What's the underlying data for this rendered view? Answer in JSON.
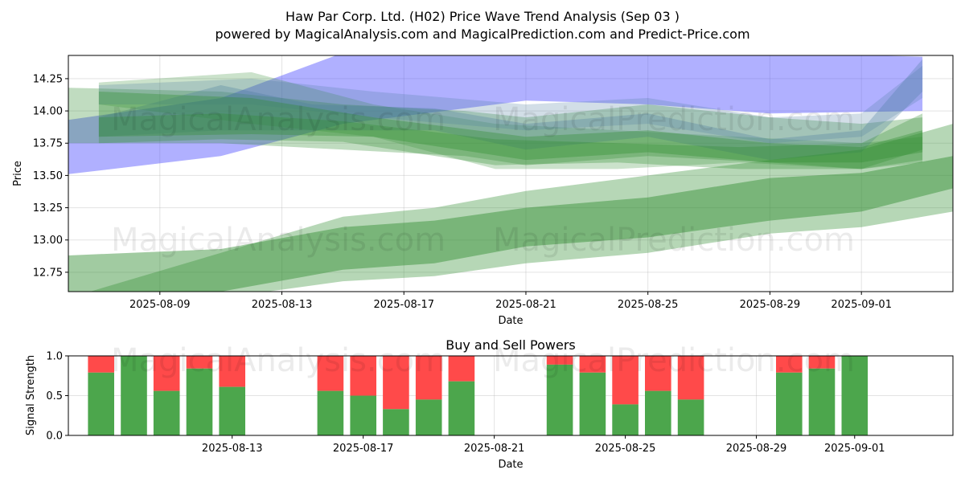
{
  "figure": {
    "title_line1": "Haw Par Corp. Ltd. (H02) Price Wave Trend Analysis (Sep 03 )",
    "title_line2": "powered by MagicalAnalysis.com and MagicalPrediction.com and Predict-Price.com",
    "watermarks": [
      "MagicalAnalysis.com",
      "MagicalPrediction.com"
    ]
  },
  "chart_data": [
    {
      "type": "area",
      "title": "",
      "xlabel": "Date",
      "ylabel": "Price",
      "x_tick_labels": [
        "2025-08-09",
        "2025-08-13",
        "2025-08-17",
        "2025-08-21",
        "2025-08-25",
        "2025-08-29",
        "2025-09-01"
      ],
      "x_tick_dates": [
        "2025-08-09",
        "2025-08-13",
        "2025-08-17",
        "2025-08-21",
        "2025-08-25",
        "2025-08-29",
        "2025-09-01"
      ],
      "xlim": [
        "2025-08-06",
        "2025-09-04"
      ],
      "ylim": [
        12.6,
        14.43
      ],
      "y_ticks": [
        12.75,
        13.0,
        13.25,
        13.5,
        13.75,
        14.0,
        14.25
      ],
      "y_tick_labels": [
        "12.75",
        "13.00",
        "13.25",
        "13.50",
        "13.75",
        "14.00",
        "14.25"
      ],
      "grid": true,
      "colors": {
        "green_band": "#2e8b2e",
        "blue_band": "#5050ff",
        "teal_band": "#4a7aa0"
      },
      "bands": [
        {
          "color": "blue",
          "opacity": 0.45,
          "x": [
            "2025-08-06",
            "2025-08-11",
            "2025-08-15",
            "2025-08-21",
            "2025-08-25",
            "2025-08-29",
            "2025-09-03"
          ],
          "upper": [
            13.93,
            14.1,
            14.45,
            14.45,
            14.45,
            14.45,
            14.42
          ],
          "lower": [
            13.51,
            13.65,
            13.9,
            14.08,
            14.05,
            13.98,
            14.0
          ]
        },
        {
          "color": "green",
          "opacity": 0.3,
          "x": [
            "2025-08-06",
            "2025-08-11",
            "2025-08-15",
            "2025-08-19",
            "2025-08-21",
            "2025-08-25",
            "2025-08-29",
            "2025-09-01",
            "2025-09-03"
          ],
          "upper": [
            14.18,
            14.15,
            14.05,
            14.0,
            13.95,
            14.05,
            13.95,
            13.9,
            13.95
          ],
          "lower": [
            13.75,
            13.75,
            13.7,
            13.65,
            13.58,
            13.65,
            13.6,
            13.55,
            13.62
          ]
        },
        {
          "color": "green",
          "opacity": 0.25,
          "x": [
            "2025-08-07",
            "2025-08-12",
            "2025-08-16",
            "2025-08-20",
            "2025-08-24",
            "2025-08-28",
            "2025-09-01",
            "2025-09-03"
          ],
          "upper": [
            14.22,
            14.3,
            14.05,
            13.9,
            13.85,
            13.8,
            13.75,
            13.8
          ],
          "lower": [
            14.05,
            13.9,
            13.8,
            13.55,
            13.55,
            13.6,
            13.55,
            13.6
          ]
        },
        {
          "color": "teal",
          "opacity": 0.3,
          "x": [
            "2025-08-07",
            "2025-08-11",
            "2025-08-14",
            "2025-08-18",
            "2025-08-21",
            "2025-08-25",
            "2025-08-29",
            "2025-09-01",
            "2025-09-03"
          ],
          "upper": [
            13.95,
            14.2,
            14.05,
            14.02,
            13.9,
            13.98,
            13.78,
            13.85,
            14.4
          ],
          "lower": [
            13.8,
            13.85,
            13.85,
            13.85,
            13.7,
            13.8,
            13.62,
            13.68,
            14.15
          ]
        },
        {
          "color": "teal",
          "opacity": 0.25,
          "x": [
            "2025-08-07",
            "2025-08-12",
            "2025-08-16",
            "2025-08-21",
            "2025-08-25",
            "2025-08-29",
            "2025-09-01",
            "2025-09-03"
          ],
          "upper": [
            14.2,
            14.25,
            14.15,
            14.05,
            14.1,
            13.95,
            13.98,
            14.35
          ],
          "lower": [
            14.05,
            14.05,
            13.95,
            13.85,
            13.9,
            13.75,
            13.8,
            14.1
          ]
        },
        {
          "color": "green",
          "opacity": 0.35,
          "x": [
            "2025-08-06",
            "2025-08-11",
            "2025-08-15",
            "2025-08-18",
            "2025-08-21",
            "2025-08-25",
            "2025-08-29",
            "2025-09-01",
            "2025-09-04"
          ],
          "upper": [
            12.55,
            12.9,
            13.18,
            13.25,
            13.38,
            13.5,
            13.62,
            13.7,
            13.9
          ],
          "lower": [
            12.3,
            12.55,
            12.68,
            12.72,
            12.82,
            12.9,
            13.05,
            13.1,
            13.22
          ]
        },
        {
          "color": "green",
          "opacity": 0.45,
          "x": [
            "2025-08-06",
            "2025-08-11",
            "2025-08-15",
            "2025-08-18",
            "2025-08-21",
            "2025-08-25",
            "2025-08-29",
            "2025-09-01",
            "2025-09-04"
          ],
          "upper": [
            12.88,
            12.93,
            13.1,
            13.15,
            13.25,
            13.33,
            13.48,
            13.52,
            13.65
          ],
          "lower": [
            12.5,
            12.6,
            12.77,
            12.82,
            12.95,
            13.02,
            13.15,
            13.22,
            13.4
          ]
        },
        {
          "color": "green",
          "opacity": 0.35,
          "x": [
            "2025-08-07",
            "2025-08-12",
            "2025-08-16",
            "2025-08-21",
            "2025-08-25",
            "2025-08-29",
            "2025-09-01",
            "2025-09-03"
          ],
          "upper": [
            14.15,
            14.1,
            13.95,
            13.8,
            13.85,
            13.75,
            13.72,
            13.85
          ],
          "lower": [
            13.8,
            13.82,
            13.8,
            13.62,
            13.68,
            13.6,
            13.6,
            13.68
          ]
        },
        {
          "color": "green",
          "opacity": 0.3,
          "x": [
            "2025-08-07",
            "2025-08-11",
            "2025-08-15",
            "2025-08-20",
            "2025-08-24",
            "2025-08-28",
            "2025-09-01",
            "2025-09-03"
          ],
          "upper": [
            13.95,
            13.98,
            13.92,
            13.78,
            13.75,
            13.72,
            13.75,
            13.98
          ],
          "lower": [
            13.75,
            13.78,
            13.76,
            13.58,
            13.6,
            13.55,
            13.55,
            13.7
          ]
        }
      ]
    },
    {
      "type": "bar",
      "title": "Buy and Sell Powers",
      "xlabel": "Date",
      "ylabel": "Signal Strength",
      "ylim": [
        0,
        1
      ],
      "y_ticks": [
        0.0,
        0.5,
        1.0
      ],
      "y_tick_labels": [
        "0.0",
        "0.5",
        "1.0"
      ],
      "x_tick_labels": [
        "2025-08-13",
        "2025-08-17",
        "2025-08-21",
        "2025-08-25",
        "2025-08-29",
        "2025-09-01"
      ],
      "x_tick_dates": [
        "2025-08-13",
        "2025-08-17",
        "2025-08-21",
        "2025-08-25",
        "2025-08-29",
        "2025-09-01"
      ],
      "xlim": [
        "2025-08-08",
        "2025-09-04"
      ],
      "grid": true,
      "colors": {
        "buy": "#4ca64c",
        "sell": "#ff4a4a"
      },
      "series": [
        {
          "name": "Buy",
          "color": "#4ca64c"
        },
        {
          "name": "Sell",
          "color": "#ff4a4a"
        }
      ],
      "categories": [
        "2025-08-09",
        "2025-08-10",
        "2025-08-11",
        "2025-08-12",
        "2025-08-13",
        "2025-08-16",
        "2025-08-17",
        "2025-08-18",
        "2025-08-19",
        "2025-08-20",
        "2025-08-23",
        "2025-08-24",
        "2025-08-25",
        "2025-08-26",
        "2025-08-27",
        "2025-08-30",
        "2025-08-31",
        "2025-09-01"
      ],
      "buy_values": [
        0.79,
        1.0,
        0.56,
        0.84,
        0.61,
        0.56,
        0.5,
        0.33,
        0.45,
        0.68,
        0.89,
        0.79,
        0.39,
        0.56,
        0.45,
        0.79,
        0.84,
        1.0
      ]
    }
  ]
}
